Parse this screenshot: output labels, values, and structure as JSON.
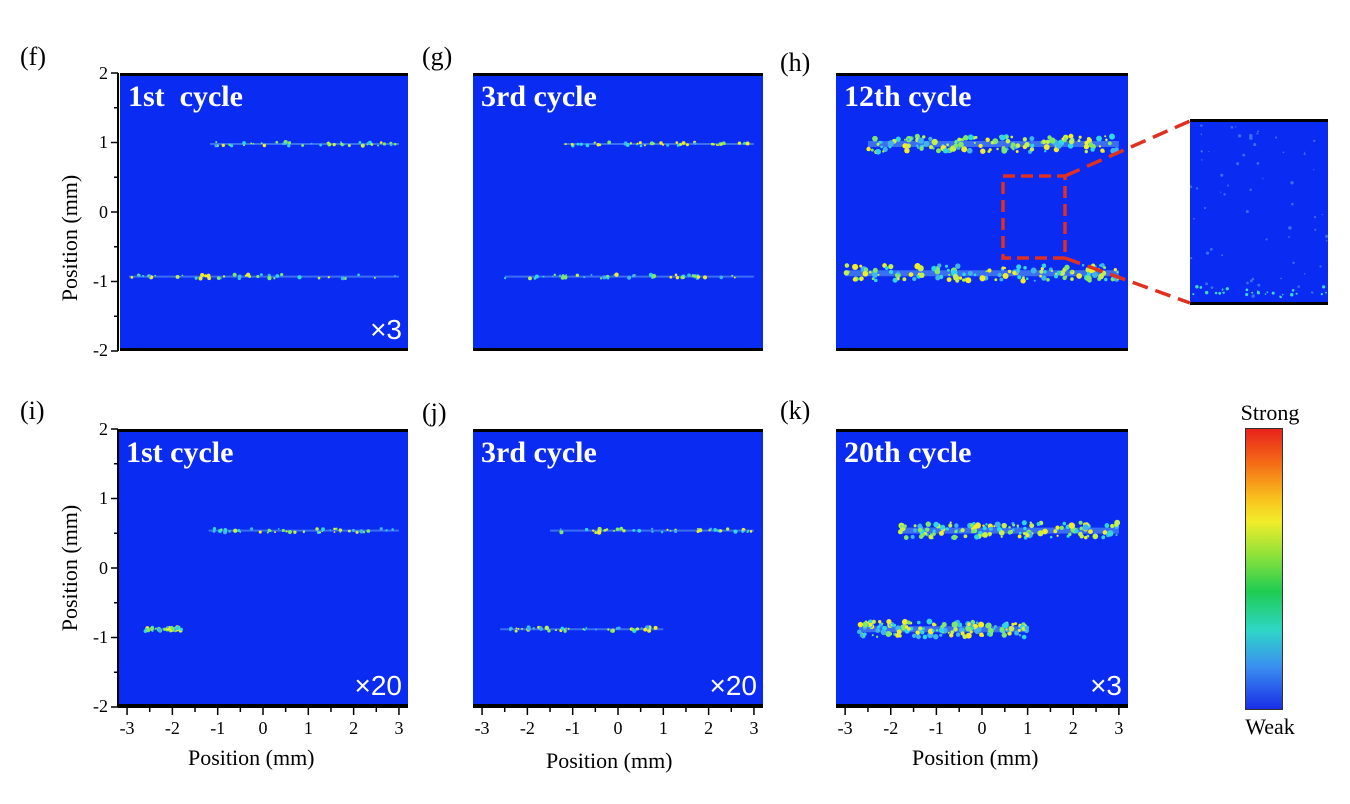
{
  "chart_data": [
    {
      "panel": "(f)",
      "type": "heatmap",
      "title": "1st  cycle",
      "multiplier": "×3",
      "xlabel": "",
      "ylabel": "Position (mm)",
      "xlim": [
        -3.2,
        3.2
      ],
      "ylim": [
        -2,
        2
      ],
      "bands": [
        {
          "y": 1.0,
          "x_range": [
            -1.2,
            3.0
          ]
        },
        {
          "y": -0.95,
          "x_range": [
            -3.0,
            3.0
          ]
        }
      ]
    },
    {
      "panel": "(g)",
      "type": "heatmap",
      "title": "3rd cycle",
      "multiplier": "",
      "xlabel": "",
      "ylabel": "",
      "xlim": [
        -3.2,
        3.2
      ],
      "ylim": [
        -2,
        2
      ],
      "bands": [
        {
          "y": 1.0,
          "x_range": [
            -1.2,
            3.0
          ]
        },
        {
          "y": -0.95,
          "x_range": [
            -2.5,
            3.0
          ]
        }
      ]
    },
    {
      "panel": "(h)",
      "type": "heatmap",
      "title": "12th cycle",
      "multiplier": "",
      "xlabel": "",
      "ylabel": "",
      "xlim": [
        -3.2,
        3.2
      ],
      "ylim": [
        -2,
        2
      ],
      "bands": [
        {
          "y": 1.0,
          "x_range": [
            -2.5,
            3.0
          ]
        },
        {
          "y": -0.9,
          "x_range": [
            -3.0,
            3.0
          ]
        }
      ],
      "inset": "zoomed region"
    },
    {
      "panel": "(i)",
      "type": "heatmap",
      "title": "1st cycle",
      "multiplier": "×20",
      "xlabel": "Position (mm)",
      "ylabel": "Position (mm)",
      "xlim": [
        -3.2,
        3.2
      ],
      "ylim": [
        -2,
        2
      ],
      "bands": [
        {
          "y": 0.55,
          "x_range": [
            -1.2,
            3.0
          ]
        },
        {
          "y": -0.9,
          "x_range": [
            -2.6,
            -1.8
          ]
        }
      ]
    },
    {
      "panel": "(j)",
      "type": "heatmap",
      "title": "3rd cycle",
      "multiplier": "×20",
      "xlabel": "Position (mm)",
      "ylabel": "",
      "xlim": [
        -3.2,
        3.2
      ],
      "ylim": [
        -2,
        2
      ],
      "bands": [
        {
          "y": 0.55,
          "x_range": [
            -1.5,
            3.0
          ]
        },
        {
          "y": -0.9,
          "x_range": [
            -2.6,
            1.0
          ]
        }
      ]
    },
    {
      "panel": "(k)",
      "type": "heatmap",
      "title": "20th cycle",
      "multiplier": "×3",
      "xlabel": "Position (mm)",
      "ylabel": "",
      "xlim": [
        -3.2,
        3.2
      ],
      "ylim": [
        -2,
        2
      ],
      "bands": [
        {
          "y": 0.55,
          "x_range": [
            -1.8,
            3.0
          ]
        },
        {
          "y": -0.9,
          "x_range": [
            -2.7,
            1.0
          ]
        }
      ]
    }
  ],
  "axes": {
    "yticks": [
      "2",
      "1",
      "0",
      "-1",
      "-2"
    ],
    "xticks": [
      "-3",
      "-2",
      "-1",
      "0",
      "1",
      "2",
      "3"
    ]
  },
  "colorbar": {
    "top_label": "Strong",
    "bottom_label": "Weak"
  },
  "colors": {
    "background": "#0a2bf2",
    "highlight": "#e03020"
  }
}
